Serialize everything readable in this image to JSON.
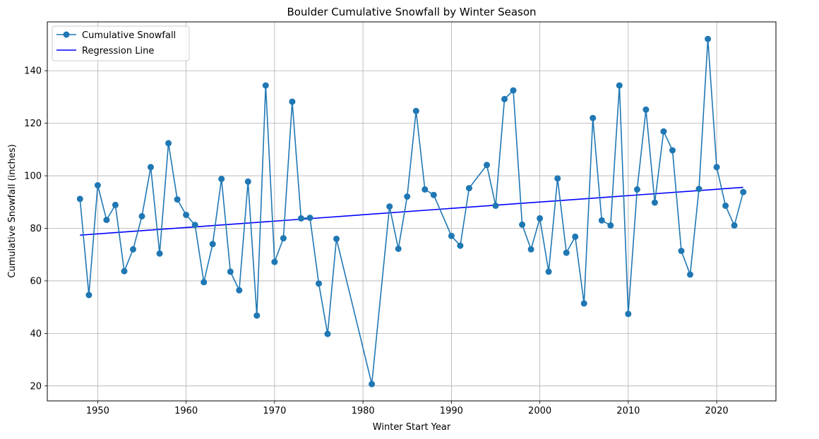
{
  "chart_data": {
    "type": "line",
    "title": "Boulder Cumulative Snowfall by Winter Season",
    "xlabel": "Winter Start Year",
    "ylabel": "Cumulative Snowfall (inches)",
    "xlim": [
      1944.3,
      2026.7
    ],
    "ylim": [
      14.3,
      158.6
    ],
    "x_ticks": [
      1950,
      1960,
      1970,
      1980,
      1990,
      2000,
      2010,
      2020
    ],
    "y_ticks": [
      20,
      40,
      60,
      80,
      100,
      120,
      140
    ],
    "grid": true,
    "legend_position": "top-left",
    "series": [
      {
        "name": "Cumulative Snowfall",
        "color": "#1f77b4",
        "marker": "circle",
        "points": [
          [
            1948,
            91.2
          ],
          [
            1949,
            54.6
          ],
          [
            1950,
            96.4
          ],
          [
            1951,
            83.2
          ],
          [
            1952,
            88.9
          ],
          [
            1953,
            63.7
          ],
          [
            1954,
            72.0
          ],
          [
            1955,
            84.6
          ],
          [
            1956,
            103.3
          ],
          [
            1957,
            70.4
          ],
          [
            1958,
            112.4
          ],
          [
            1959,
            91.0
          ],
          [
            1960,
            85.1
          ],
          [
            1961,
            81.3
          ],
          [
            1962,
            59.5
          ],
          [
            1963,
            74.0
          ],
          [
            1964,
            98.8
          ],
          [
            1965,
            63.5
          ],
          [
            1966,
            56.4
          ],
          [
            1967,
            97.8
          ],
          [
            1968,
            46.8
          ],
          [
            1969,
            134.4
          ],
          [
            1970,
            67.2
          ],
          [
            1971,
            76.2
          ],
          [
            1972,
            128.2
          ],
          [
            1973,
            83.8
          ],
          [
            1974,
            84.0
          ],
          [
            1975,
            59.0
          ],
          [
            1976,
            39.8
          ],
          [
            1977,
            76.0
          ],
          [
            1981,
            20.7
          ],
          [
            1983,
            88.3
          ],
          [
            1984,
            72.2
          ],
          [
            1985,
            92.1
          ],
          [
            1986,
            124.7
          ],
          [
            1987,
            94.8
          ],
          [
            1988,
            92.7
          ],
          [
            1990,
            77.1
          ],
          [
            1991,
            73.4
          ],
          [
            1992,
            95.3
          ],
          [
            1994,
            104.1
          ],
          [
            1995,
            88.6
          ],
          [
            1996,
            129.2
          ],
          [
            1997,
            132.5
          ],
          [
            1998,
            81.4
          ],
          [
            1999,
            72.0
          ],
          [
            2000,
            83.8
          ],
          [
            2001,
            63.5
          ],
          [
            2002,
            99.0
          ],
          [
            2003,
            70.7
          ],
          [
            2004,
            76.8
          ],
          [
            2005,
            51.4
          ],
          [
            2006,
            122.0
          ],
          [
            2007,
            83.0
          ],
          [
            2008,
            81.1
          ],
          [
            2009,
            134.4
          ],
          [
            2010,
            47.4
          ],
          [
            2011,
            94.8
          ],
          [
            2012,
            125.2
          ],
          [
            2013,
            89.8
          ],
          [
            2014,
            116.9
          ],
          [
            2015,
            109.7
          ],
          [
            2016,
            71.4
          ],
          [
            2017,
            62.4
          ],
          [
            2018,
            95.0
          ],
          [
            2019,
            152.1
          ],
          [
            2020,
            103.3
          ],
          [
            2021,
            88.6
          ],
          [
            2022,
            81.1
          ],
          [
            2023,
            93.8
          ]
        ]
      },
      {
        "name": "Regression Line",
        "color": "#0000ff",
        "marker": "none",
        "points": [
          [
            1948,
            77.4
          ],
          [
            2023,
            95.6
          ]
        ]
      }
    ]
  }
}
